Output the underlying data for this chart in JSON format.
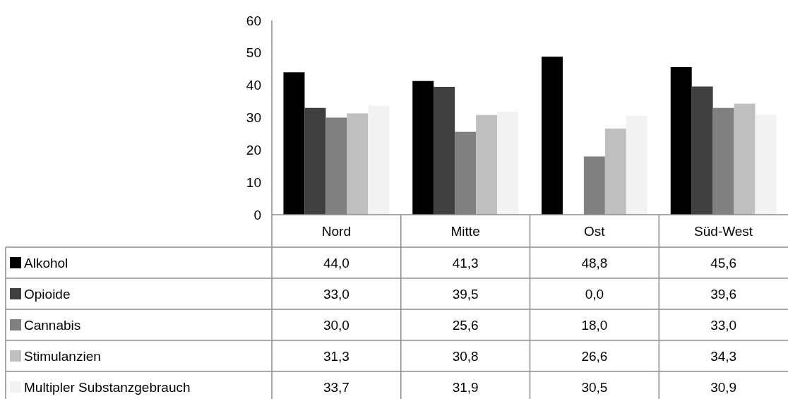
{
  "chart_data": {
    "type": "bar",
    "categories": [
      "Nord",
      "Mitte",
      "Ost",
      "Süd-West"
    ],
    "ylim": [
      0,
      60
    ],
    "yticks": [
      0,
      10,
      20,
      30,
      40,
      50,
      60
    ],
    "grid": false,
    "legend": "bottom",
    "series": [
      {
        "name": "Alkohol",
        "color": "#000000",
        "values": [
          44.0,
          41.3,
          48.8,
          45.6
        ],
        "value_labels": [
          "44,0",
          "41,3",
          "48,8",
          "45,6"
        ]
      },
      {
        "name": "Opioide",
        "color": "#404040",
        "values": [
          33.0,
          39.5,
          0.0,
          39.6
        ],
        "value_labels": [
          "33,0",
          "39,5",
          "0,0",
          "39,6"
        ]
      },
      {
        "name": "Cannabis",
        "color": "#808080",
        "values": [
          30.0,
          25.6,
          18.0,
          33.0
        ],
        "value_labels": [
          "30,0",
          "25,6",
          "18,0",
          "33,0"
        ]
      },
      {
        "name": "Stimulanzien",
        "color": "#bfbfbf",
        "values": [
          31.3,
          30.8,
          26.6,
          34.3
        ],
        "value_labels": [
          "31,3",
          "30,8",
          "26,6",
          "34,3"
        ]
      },
      {
        "name": "Multipler Substanzgebrauch",
        "color": "#f2f2f2",
        "values": [
          33.7,
          31.9,
          30.5,
          30.9
        ],
        "value_labels": [
          "33,7",
          "31,9",
          "30,5",
          "30,9"
        ]
      }
    ]
  }
}
